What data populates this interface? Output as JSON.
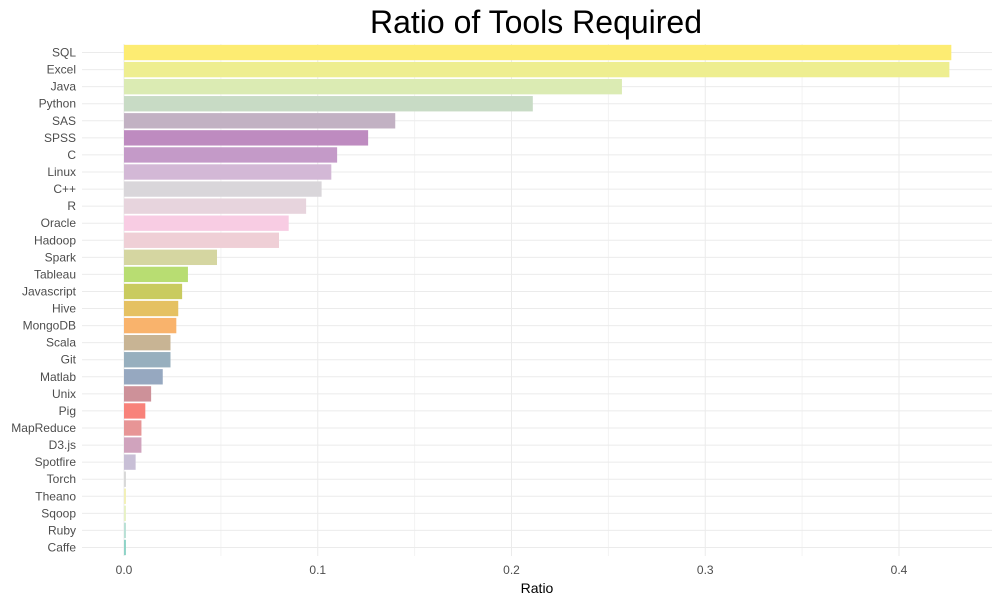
{
  "chart_data": {
    "type": "bar",
    "orientation": "horizontal",
    "title": "Ratio of Tools Required",
    "xlabel": "Ratio",
    "ylabel": "",
    "xlim": [
      0,
      0.45
    ],
    "xticks": [
      0.0,
      0.1,
      0.2,
      0.3,
      0.4
    ],
    "xtick_labels": [
      "0.0",
      "0.1",
      "0.2",
      "0.3",
      "0.4"
    ],
    "grid": true,
    "legend": "none",
    "categories": [
      "SQL",
      "Excel",
      "Java",
      "Python",
      "SAS",
      "SPSS",
      "C",
      "Linux",
      "C++",
      "R",
      "Oracle",
      "Hadoop",
      "Spark",
      "Tableau",
      "Javascript",
      "Hive",
      "MongoDB",
      "Scala",
      "Git",
      "Matlab",
      "Unix",
      "Pig",
      "MapReduce",
      "D3.js",
      "Spotfire",
      "Torch",
      "Theano",
      "Sqoop",
      "Ruby",
      "Caffe"
    ],
    "values": [
      0.427,
      0.426,
      0.257,
      0.211,
      0.14,
      0.126,
      0.11,
      0.107,
      0.102,
      0.094,
      0.085,
      0.08,
      0.048,
      0.033,
      0.03,
      0.028,
      0.027,
      0.024,
      0.024,
      0.02,
      0.014,
      0.011,
      0.009,
      0.009,
      0.006,
      0.001,
      0.001,
      0.001,
      0.001,
      0.001
    ],
    "colors": [
      "#FDEC72",
      "#EEEE90",
      "#DBEBB3",
      "#C8DBC5",
      "#C2B1C3",
      "#BE8BC0",
      "#C49AC8",
      "#D3B8D6",
      "#D9D6DA",
      "#E7D4DD",
      "#F8CCE3",
      "#EFCFD6",
      "#D5D6A1",
      "#B8DD72",
      "#C9CB5F",
      "#E5C162",
      "#F9B36C",
      "#C8B494",
      "#97AFBE",
      "#96A8C0",
      "#CD9199",
      "#F8827A",
      "#E79596",
      "#D0A3BD",
      "#C8BFD6",
      "#D8D8D8",
      "#F2F0B6",
      "#E7F1C4",
      "#B8E0D5",
      "#8ED3C7"
    ]
  }
}
